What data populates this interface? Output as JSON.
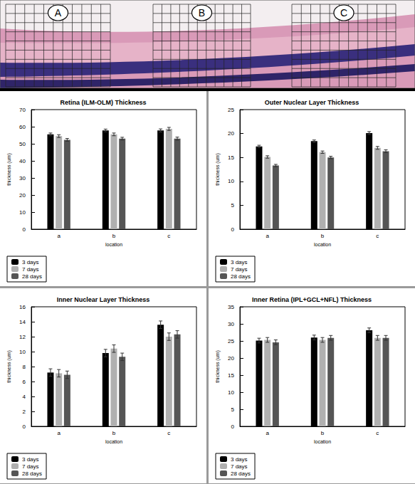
{
  "image": {
    "labels": [
      "A",
      "B",
      "C"
    ]
  },
  "chart_data": [
    {
      "type": "bar",
      "title": "Retina (ILM-OLM) Thickness",
      "x_label": "location",
      "y_label": "thickness (um)",
      "categories": [
        "a",
        "b",
        "c"
      ],
      "series": [
        {
          "name": "3 days",
          "color": "#000000",
          "values": [
            55.5,
            57.8,
            57.8
          ],
          "errors": [
            0.8,
            0.8,
            0.9
          ]
        },
        {
          "name": "7 days",
          "color": "#b0b0b0",
          "values": [
            54.5,
            55.5,
            58.7
          ],
          "errors": [
            0.8,
            0.8,
            0.9
          ]
        },
        {
          "name": "28 days",
          "color": "#555555",
          "values": [
            52.3,
            53.0,
            53.0
          ],
          "errors": [
            0.8,
            0.8,
            0.9
          ]
        }
      ],
      "ylim": [
        0,
        70
      ],
      "yticks": [
        0,
        10,
        20,
        30,
        40,
        50,
        60,
        70
      ],
      "grid": false,
      "legend": "bottom left"
    },
    {
      "type": "bar",
      "title": "Outer Nuclear Layer Thickness",
      "x_label": "location",
      "y_label": "thickness (um)",
      "categories": [
        "a",
        "b",
        "c"
      ],
      "series": [
        {
          "name": "3 days",
          "color": "#000000",
          "values": [
            17.3,
            18.4,
            20.1
          ],
          "errors": [
            0.25,
            0.25,
            0.3
          ]
        },
        {
          "name": "7 days",
          "color": "#b0b0b0",
          "values": [
            15.1,
            16.1,
            17.0
          ],
          "errors": [
            0.25,
            0.25,
            0.3
          ]
        },
        {
          "name": "28 days",
          "color": "#555555",
          "values": [
            13.3,
            15.0,
            16.3
          ],
          "errors": [
            0.25,
            0.25,
            0.3
          ]
        }
      ],
      "ylim": [
        0,
        25
      ],
      "yticks": [
        0,
        5,
        10,
        15,
        20,
        25
      ],
      "grid": false,
      "legend": "bottom left"
    },
    {
      "type": "bar",
      "title": "Inner Nuclear Layer Thickness",
      "x_label": "location",
      "y_label": "thickness (um)",
      "categories": [
        "a",
        "b",
        "c"
      ],
      "series": [
        {
          "name": "3 days",
          "color": "#000000",
          "values": [
            7.2,
            9.8,
            13.6
          ],
          "errors": [
            0.5,
            0.5,
            0.5
          ]
        },
        {
          "name": "7 days",
          "color": "#b0b0b0",
          "values": [
            7.1,
            10.4,
            12.0
          ],
          "errors": [
            0.5,
            0.5,
            0.5
          ]
        },
        {
          "name": "28 days",
          "color": "#555555",
          "values": [
            6.9,
            9.3,
            12.3
          ],
          "errors": [
            0.5,
            0.5,
            0.5
          ]
        }
      ],
      "ylim": [
        0,
        16
      ],
      "yticks": [
        0,
        2,
        4,
        6,
        8,
        10,
        12,
        14,
        16
      ],
      "grid": false,
      "legend": "bottom left"
    },
    {
      "type": "bar",
      "title": "Inner Retina (IPL+GCL+NFL) Thickness",
      "x_label": "location",
      "y_label": "thickness (um)",
      "categories": [
        "a",
        "b",
        "c"
      ],
      "series": [
        {
          "name": "3 days",
          "color": "#000000",
          "values": [
            25.1,
            26.0,
            28.1
          ],
          "errors": [
            0.7,
            0.7,
            0.7
          ]
        },
        {
          "name": "7 days",
          "color": "#b0b0b0",
          "values": [
            25.3,
            25.3,
            25.9
          ],
          "errors": [
            0.7,
            0.7,
            0.7
          ]
        },
        {
          "name": "28 days",
          "color": "#555555",
          "values": [
            24.6,
            25.9,
            25.9
          ],
          "errors": [
            0.7,
            0.7,
            0.7
          ]
        }
      ],
      "ylim": [
        0,
        35
      ],
      "yticks": [
        0,
        5,
        10,
        15,
        20,
        25,
        30,
        35
      ],
      "grid": false,
      "legend": "bottom left"
    }
  ]
}
